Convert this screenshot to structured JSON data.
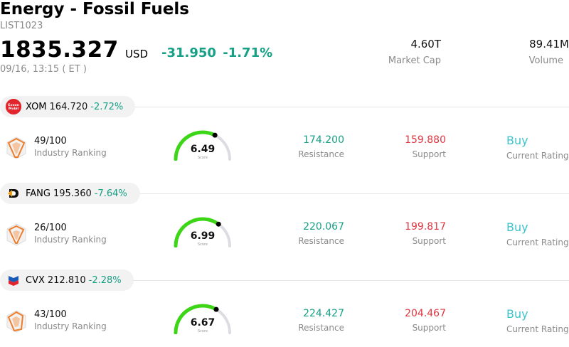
{
  "header": {
    "title": "Energy - Fossil Fuels",
    "code": "LIST1023",
    "price": "1835.327",
    "currency": "USD",
    "change": "-31.950",
    "change_pct": "-1.71%",
    "timestamp": "09/16, 13:15  ( ET )",
    "market_cap_value": "4.60T",
    "market_cap_label": "Market Cap",
    "volume_value": "89.41M",
    "volume_label": "Volume"
  },
  "colors": {
    "positive_text": "#16a085",
    "support_red": "#e0353f",
    "rating_cyan": "#3cc3c9",
    "gauge_green": "#3dd616"
  },
  "stocks": [
    {
      "symbol": "XOM",
      "price": "164.720",
      "change_pct": "-2.72%",
      "logo": "exxon-mobil-logo",
      "logo_text": "Exxon Mobil",
      "rank": "49/100",
      "rank_label": "Industry Ranking",
      "score": "6.49",
      "score_fraction": 0.649,
      "score_label": "Score",
      "resistance": "174.200",
      "resistance_label": "Resistance",
      "support": "159.880",
      "support_label": "Support",
      "rating": "Buy",
      "rating_label": "Current Rating"
    },
    {
      "symbol": "FANG",
      "price": "195.360",
      "change_pct": "-7.64%",
      "logo": "diamondback-logo",
      "rank": "26/100",
      "rank_label": "Industry Ranking",
      "score": "6.99",
      "score_fraction": 0.699,
      "score_label": "Score",
      "resistance": "220.067",
      "resistance_label": "Resistance",
      "support": "199.817",
      "support_label": "Support",
      "rating": "Buy",
      "rating_label": "Current Rating"
    },
    {
      "symbol": "CVX",
      "price": "212.810",
      "change_pct": "-2.28%",
      "logo": "chevron-logo",
      "rank": "43/100",
      "rank_label": "Industry Ranking",
      "score": "6.67",
      "score_fraction": 0.667,
      "score_label": "Score",
      "resistance": "224.427",
      "resistance_label": "Resistance",
      "support": "204.467",
      "support_label": "Support",
      "rating": "Buy",
      "rating_label": "Current Rating"
    }
  ]
}
